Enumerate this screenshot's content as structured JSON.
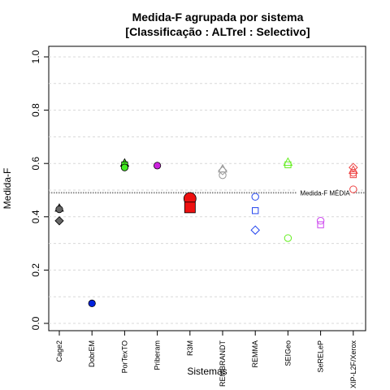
{
  "chart_data": {
    "type": "scatter",
    "title": "Medida-F agrupada por sistema",
    "subtitle": "[Classificação : ALTrel : Selectivo]",
    "xlabel": "Sistemas",
    "ylabel": "Medida-F",
    "ylim": [
      0,
      1
    ],
    "yticks": [
      "0.0",
      "0.2",
      "0.4",
      "0.6",
      "0.8",
      "1.0"
    ],
    "grid": true,
    "categories": [
      "Cage2",
      "DobrEM",
      "PorTexTO",
      "Priberam",
      "R3M",
      "REMBRANDT",
      "REMMA",
      "SEIGeo",
      "SeRELeP",
      "XIP-L2F/Xerox"
    ],
    "reference_line": {
      "label": "Medida-F MÉDIA",
      "value": 0.49
    },
    "points": [
      {
        "category": "Cage2",
        "y": 0.433,
        "shape": "triangle",
        "filled": true,
        "color": "#666666",
        "size": 1
      },
      {
        "category": "Cage2",
        "y": 0.428,
        "shape": "circle",
        "filled": true,
        "color": "#666666",
        "size": 1
      },
      {
        "category": "Cage2",
        "y": 0.385,
        "shape": "diamond",
        "filled": true,
        "color": "#666666",
        "size": 1
      },
      {
        "category": "DobrEM",
        "y": 0.075,
        "shape": "circle",
        "filled": true,
        "color": "#0022dd",
        "size": 1
      },
      {
        "category": "PorTexTO",
        "y": 0.602,
        "shape": "triangle",
        "filled": true,
        "color": "#44ee22",
        "size": 1
      },
      {
        "category": "PorTexTO",
        "y": 0.595,
        "shape": "square",
        "filled": true,
        "color": "#44ee22",
        "size": 1
      },
      {
        "category": "PorTexTO",
        "y": 0.585,
        "shape": "circle",
        "filled": true,
        "color": "#44ee22",
        "size": 1
      },
      {
        "category": "Priberam",
        "y": 0.592,
        "shape": "circle",
        "filled": true,
        "color": "#cc22dd",
        "size": 1
      },
      {
        "category": "R3M",
        "y": 0.468,
        "shape": "circle",
        "filled": true,
        "color": "#ee1111",
        "size": 2
      },
      {
        "category": "R3M",
        "y": 0.435,
        "shape": "square",
        "filled": true,
        "color": "#ee1111",
        "size": 2
      },
      {
        "category": "REMBRANDT",
        "y": 0.58,
        "shape": "triangle",
        "filled": false,
        "color": "#999999",
        "size": 1
      },
      {
        "category": "REMBRANDT",
        "y": 0.573,
        "shape": "diamond",
        "filled": false,
        "color": "#999999",
        "size": 1
      },
      {
        "category": "REMBRANDT",
        "y": 0.556,
        "shape": "circle",
        "filled": false,
        "color": "#999999",
        "size": 1
      },
      {
        "category": "REMMA",
        "y": 0.475,
        "shape": "circle",
        "filled": false,
        "color": "#2244ee",
        "size": 1
      },
      {
        "category": "REMMA",
        "y": 0.423,
        "shape": "square",
        "filled": false,
        "color": "#2244ee",
        "size": 1
      },
      {
        "category": "REMMA",
        "y": 0.35,
        "shape": "diamond",
        "filled": false,
        "color": "#2244ee",
        "size": 1
      },
      {
        "category": "SEIGeo",
        "y": 0.605,
        "shape": "triangle",
        "filled": false,
        "color": "#66ee22",
        "size": 1
      },
      {
        "category": "SEIGeo",
        "y": 0.595,
        "shape": "square",
        "filled": false,
        "color": "#66ee22",
        "size": 1
      },
      {
        "category": "SEIGeo",
        "y": 0.32,
        "shape": "circle",
        "filled": false,
        "color": "#66ee22",
        "size": 1
      },
      {
        "category": "SeRELeP",
        "y": 0.385,
        "shape": "circle",
        "filled": false,
        "color": "#cc44ee",
        "size": 1
      },
      {
        "category": "SeRELeP",
        "y": 0.37,
        "shape": "square",
        "filled": false,
        "color": "#cc44ee",
        "size": 1
      },
      {
        "category": "XIP-L2F/Xerox",
        "y": 0.585,
        "shape": "diamond",
        "filled": false,
        "color": "#ee4444",
        "size": 1
      },
      {
        "category": "XIP-L2F/Xerox",
        "y": 0.575,
        "shape": "triangle",
        "filled": false,
        "color": "#ee4444",
        "size": 1
      },
      {
        "category": "XIP-L2F/Xerox",
        "y": 0.565,
        "shape": "circle",
        "filled": false,
        "color": "#ee4444",
        "size": 1
      },
      {
        "category": "XIP-L2F/Xerox",
        "y": 0.558,
        "shape": "square",
        "filled": false,
        "color": "#ee4444",
        "size": 1
      },
      {
        "category": "XIP-L2F/Xerox",
        "y": 0.503,
        "shape": "circle",
        "filled": false,
        "color": "#ee4444",
        "size": 1
      }
    ]
  }
}
